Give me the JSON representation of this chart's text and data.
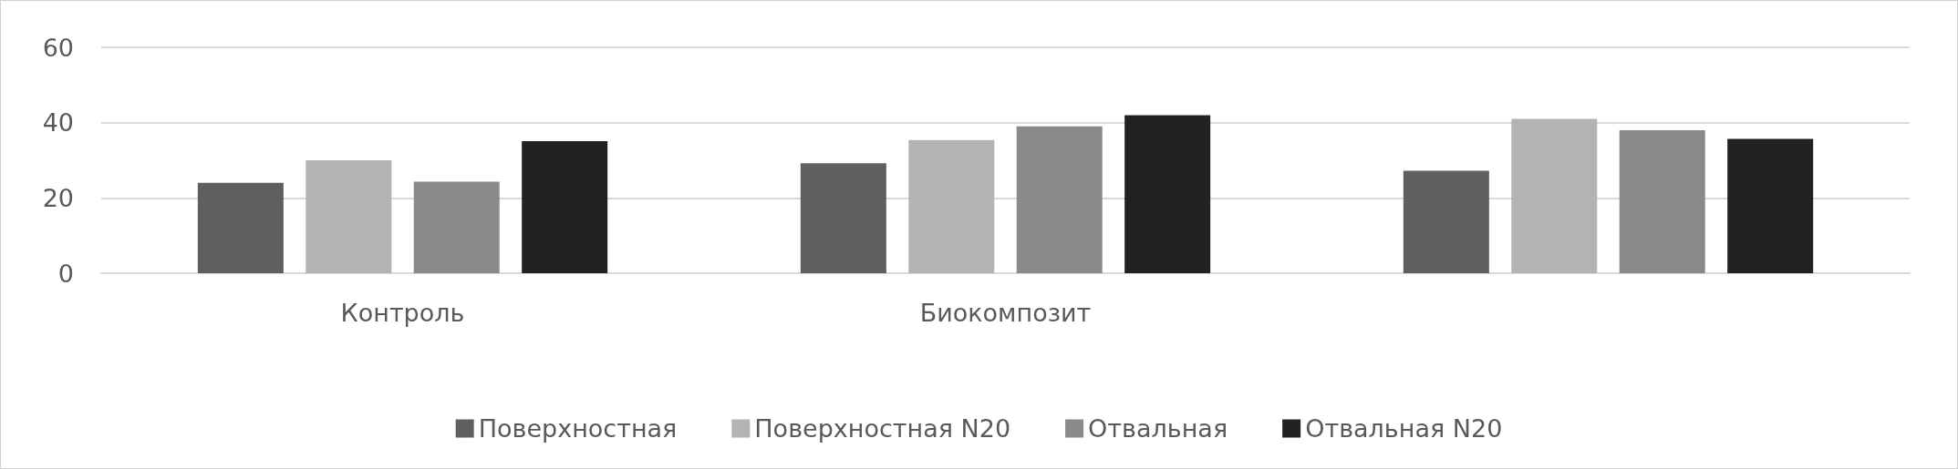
{
  "chart_data": {
    "type": "bar",
    "categories": [
      "Контроль",
      "Биокомпозит",
      null
    ],
    "series": [
      {
        "name": "Поверхностная",
        "color": "#5f5f5f",
        "values": [
          24,
          29.2,
          27.2
        ]
      },
      {
        "name": "Поверхностная N20",
        "color": "#b3b3b3",
        "values": [
          30,
          35.4,
          41
        ]
      },
      {
        "name": "Отвальная",
        "color": "#8a8a8a",
        "values": [
          24.3,
          39,
          38
        ]
      },
      {
        "name": "Отвальная N20",
        "color": "#222222",
        "values": [
          35.1,
          42,
          35.7
        ]
      }
    ],
    "ylim": [
      0,
      60
    ],
    "yticks": [
      0,
      20,
      40,
      60
    ],
    "grid": "y",
    "legend": "bottom"
  }
}
